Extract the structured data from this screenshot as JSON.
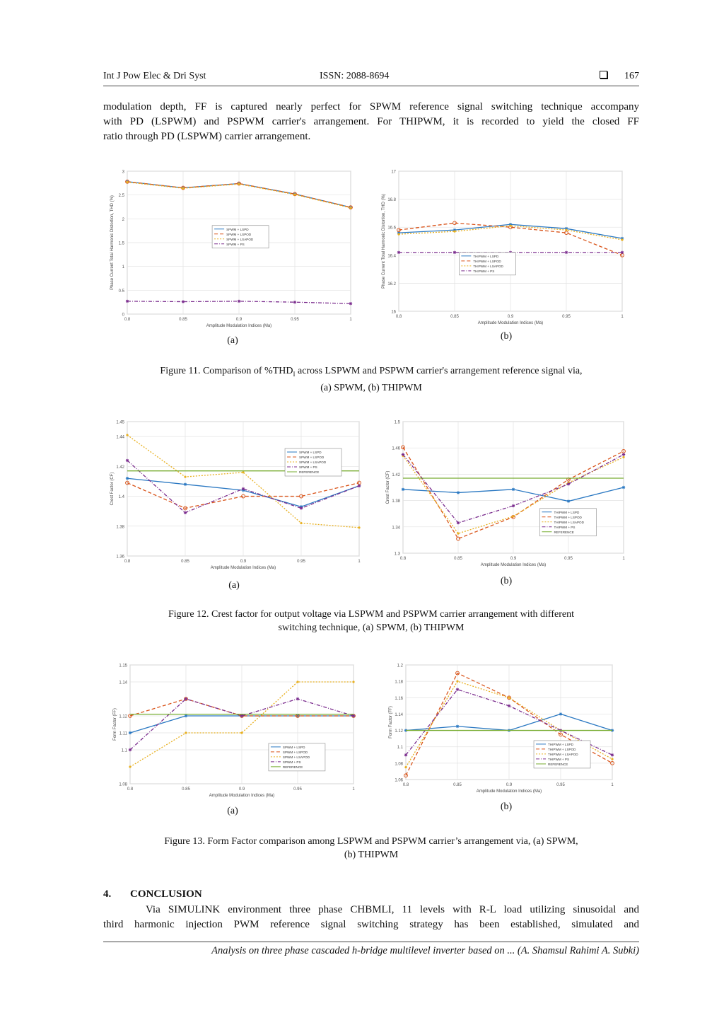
{
  "header": {
    "journal": "Int J Pow Elec & Dri Syst",
    "issn": "ISSN: 2088-8694",
    "page": "167"
  },
  "intro_lines": [
    "modulation depth, FF is captured nearly perfect for SPWM reference signal switching technique accompany",
    "with PD (LSPWM) and PSPWM carrier's arrangement. For THIPWM, it is recorded to yield the closed FF",
    "ratio through PD (LSPWM) carrier arrangement."
  ],
  "figures": [
    {
      "caption_line1_pre": "Figure 11. Comparison of %THD",
      "caption_line1_sub": "I",
      "caption_line1_post": " across LSPWM and PSPWM carrier's arrangement reference signal via,",
      "caption_line2": "(a) SPWM, (b) THIPWM",
      "label_a": "(a)",
      "label_b": "(b)"
    },
    {
      "caption_line1": "Figure 12. Crest factor for output voltage via LSPWM and PSPWM carrier arrangement with different",
      "caption_line2": "switching technique, (a) SPWM, (b) THIPWM",
      "label_a": "(a)",
      "label_b": "(b)"
    },
    {
      "caption_line1": "Figure 13. Form Factor comparison among LSPWM and PSPWM carrier’s arrangement via, (a) SPWM,",
      "caption_line2": "(b) THIPWM",
      "label_a": "(a)",
      "label_b": "(b)"
    }
  ],
  "section": {
    "number": "4.",
    "title": "CONCLUSION",
    "lines": [
      "Via SIMULINK environment three phase CHBMLI, 11 levels with R-L load utilizing sinusoidal and",
      "third harmonic injection PWM reference signal switching strategy has been established, simulated and"
    ]
  },
  "footer": "Analysis on three phase cascaded h-bridge multilevel inverter based on ... (A. Shamsul Rahimi A. Subki)",
  "colors": {
    "LSPD": "#2a78c2",
    "LSPOD": "#d9541a",
    "LSAPOD": "#e8b020",
    "PS": "#7b2d8e",
    "REFERENCE": "#77ac30"
  },
  "chart_data": [
    {
      "id": "fig11a",
      "type": "line",
      "xlabel": "Amplitude Modulation Indices (Ma)",
      "ylabel": "Phase Current Total Harmonic Distortion, THD (%)",
      "x": [
        0.8,
        0.85,
        0.9,
        0.95,
        1
      ],
      "xticks": [
        "0.8",
        "0.85",
        "0.9",
        "0.95",
        "1"
      ],
      "ylim": [
        0,
        3
      ],
      "yticks": [
        "0",
        "0.5",
        "1",
        "1.5",
        "2",
        "2.5",
        "3"
      ],
      "ytickvals": [
        0,
        0.5,
        1,
        1.5,
        2,
        2.5,
        3
      ],
      "legend": "center",
      "series": [
        {
          "name": "SPWM + LSPD",
          "key": "LSPD",
          "values": [
            2.78,
            2.65,
            2.74,
            2.52,
            2.24
          ]
        },
        {
          "name": "SPWM + LSPOD",
          "key": "LSPOD",
          "values": [
            2.78,
            2.65,
            2.74,
            2.52,
            2.24
          ]
        },
        {
          "name": "SPWM + LSAPOD",
          "key": "LSAPOD",
          "values": [
            2.77,
            2.64,
            2.73,
            2.51,
            2.23
          ]
        },
        {
          "name": "SPWM + PS",
          "key": "PS",
          "values": [
            0.27,
            0.26,
            0.27,
            0.25,
            0.22
          ]
        }
      ]
    },
    {
      "id": "fig11b",
      "type": "line",
      "xlabel": "Amplitude Modulation Indices (Ma)",
      "ylabel": "Phase Current Total Harmonic Distortion, THD (%)",
      "x": [
        0.8,
        0.85,
        0.9,
        0.95,
        1
      ],
      "xticks": [
        "0.8",
        "0.85",
        "0.9",
        "0.95",
        "1"
      ],
      "ylim": [
        16,
        17
      ],
      "yticks": [
        "16",
        "16.2",
        "16.4",
        "16.6",
        "16.8",
        "17"
      ],
      "ytickvals": [
        16,
        16.2,
        16.4,
        16.6,
        16.8,
        17
      ],
      "legend": "lower-left",
      "series": [
        {
          "name": "THIPWM + LSPD",
          "key": "LSPD",
          "values": [
            16.56,
            16.58,
            16.62,
            16.59,
            16.52
          ]
        },
        {
          "name": "THIPWM + LSPOD",
          "key": "LSPOD",
          "values": [
            16.58,
            16.63,
            16.6,
            16.56,
            16.4
          ]
        },
        {
          "name": "THIPWM + LSAPOD",
          "key": "LSAPOD",
          "values": [
            16.55,
            16.57,
            16.61,
            16.58,
            16.51
          ]
        },
        {
          "name": "THIPWM + PS",
          "key": "PS",
          "values": [
            16.42,
            16.42,
            16.42,
            16.42,
            16.42
          ]
        }
      ]
    },
    {
      "id": "fig12a",
      "type": "line",
      "xlabel": "Amplitude Modulation Indices (Ma)",
      "ylabel": "Crest Factor (CF)",
      "x": [
        0.8,
        0.85,
        0.9,
        0.95,
        1
      ],
      "xticks": [
        "0.8",
        "0.85",
        "0.9",
        "0.95",
        "1"
      ],
      "ylim": [
        1.36,
        1.45
      ],
      "yticks": [
        "1.36",
        "1.38",
        "1.4",
        "1.42",
        "1.44",
        "1.45"
      ],
      "ytickvals": [
        1.36,
        1.38,
        1.4,
        1.42,
        1.44,
        1.45
      ],
      "legend": "upper-right",
      "series": [
        {
          "name": "SPWM + LSPD",
          "key": "LSPD",
          "values": [
            1.412,
            1.408,
            1.404,
            1.393,
            1.407
          ]
        },
        {
          "name": "SPWM + LSPOD",
          "key": "LSPOD",
          "values": [
            1.409,
            1.392,
            1.4,
            1.4,
            1.409
          ]
        },
        {
          "name": "SPWM + LSAPOD",
          "key": "LSAPOD",
          "values": [
            1.441,
            1.413,
            1.416,
            1.382,
            1.379
          ]
        },
        {
          "name": "SPWM + PS",
          "key": "PS",
          "values": [
            1.424,
            1.389,
            1.405,
            1.392,
            1.407
          ]
        },
        {
          "name": "REFERENCE",
          "key": "REFERENCE",
          "values": [
            1.417,
            1.417,
            1.417,
            1.417,
            1.417
          ]
        }
      ]
    },
    {
      "id": "fig12b",
      "type": "line",
      "xlabel": "Amplitude Modulation Indices (Ma)",
      "ylabel": "Crest Factor (CF)",
      "x": [
        0.8,
        0.85,
        0.9,
        0.95,
        1
      ],
      "xticks": [
        "0.8",
        "0.85",
        "0.9",
        "0.95",
        "1"
      ],
      "ylim": [
        1.3,
        1.5
      ],
      "yticks": [
        "1.3",
        "1.34",
        "1.38",
        "1.42",
        "1.46",
        "1.5"
      ],
      "ytickvals": [
        1.3,
        1.34,
        1.38,
        1.42,
        1.46,
        1.5
      ],
      "legend": "lower-right",
      "series": [
        {
          "name": "THIPWM + LSPD",
          "key": "LSPD",
          "values": [
            1.397,
            1.392,
            1.397,
            1.379,
            1.4
          ]
        },
        {
          "name": "THIPWM + LSPOD",
          "key": "LSPOD",
          "values": [
            1.461,
            1.322,
            1.355,
            1.412,
            1.455
          ]
        },
        {
          "name": "THIPWM + LSAPOD",
          "key": "LSAPOD",
          "values": [
            1.448,
            1.33,
            1.356,
            1.407,
            1.446
          ]
        },
        {
          "name": "THIPWM + PS",
          "key": "PS",
          "values": [
            1.45,
            1.346,
            1.372,
            1.405,
            1.45
          ]
        },
        {
          "name": "REFERENCE",
          "key": "REFERENCE",
          "values": [
            1.414,
            1.414,
            1.414,
            1.414,
            1.414
          ]
        }
      ]
    },
    {
      "id": "fig13a",
      "type": "line",
      "xlabel": "Amplitude Modulation Indices (Ma)",
      "ylabel": "Form Factor (FF)",
      "x": [
        0.8,
        0.85,
        0.9,
        0.95,
        1
      ],
      "xticks": [
        "0.8",
        "0.85",
        "0.9",
        "0.95",
        "1"
      ],
      "ylim": [
        1.08,
        1.15
      ],
      "yticks": [
        "1.08",
        "1.1",
        "1.11",
        "1.12",
        "1.14",
        "1.15"
      ],
      "ytickvals": [
        1.08,
        1.1,
        1.11,
        1.12,
        1.14,
        1.15
      ],
      "legend": "lower-right",
      "series": [
        {
          "name": "SPWM + LSPD",
          "key": "LSPD",
          "values": [
            1.11,
            1.12,
            1.12,
            1.12,
            1.12
          ]
        },
        {
          "name": "SPWM + LSPOD",
          "key": "LSPOD",
          "values": [
            1.12,
            1.13,
            1.12,
            1.12,
            1.12
          ]
        },
        {
          "name": "SPWM + LSAPOD",
          "key": "LSAPOD",
          "values": [
            1.09,
            1.11,
            1.11,
            1.14,
            1.14
          ]
        },
        {
          "name": "SPWM + PS",
          "key": "PS",
          "values": [
            1.1,
            1.13,
            1.12,
            1.13,
            1.12
          ]
        },
        {
          "name": "REFERENCE",
          "key": "REFERENCE",
          "values": [
            1.121,
            1.121,
            1.121,
            1.121,
            1.121
          ]
        }
      ]
    },
    {
      "id": "fig13b",
      "type": "line",
      "xlabel": "Amplitude Modulation Indices (Ma)",
      "ylabel": "Form Factor (FF)",
      "x": [
        0.8,
        0.85,
        0.9,
        0.95,
        1
      ],
      "xticks": [
        "0.8",
        "0.85",
        "0.9",
        "0.95",
        "1"
      ],
      "ylim": [
        1.06,
        1.2
      ],
      "yticks": [
        "1.06",
        "1.08",
        "1.1",
        "1.12",
        "1.14",
        "1.16",
        "1.18",
        "1.2"
      ],
      "ytickvals": [
        1.06,
        1.08,
        1.1,
        1.12,
        1.14,
        1.16,
        1.18,
        1.2
      ],
      "legend": "lower-right",
      "series": [
        {
          "name": "THIPWM + LSPD",
          "key": "LSPD",
          "values": [
            1.12,
            1.125,
            1.12,
            1.14,
            1.12
          ]
        },
        {
          "name": "THIPWM + LSPOD",
          "key": "LSPOD",
          "values": [
            1.065,
            1.19,
            1.16,
            1.115,
            1.08
          ]
        },
        {
          "name": "THIPWM + LSAPOD",
          "key": "LSAPOD",
          "values": [
            1.075,
            1.18,
            1.16,
            1.12,
            1.085
          ]
        },
        {
          "name": "THIPWM + PS",
          "key": "PS",
          "values": [
            1.09,
            1.17,
            1.15,
            1.12,
            1.09
          ]
        },
        {
          "name": "REFERENCE",
          "key": "REFERENCE",
          "values": [
            1.12,
            1.12,
            1.12,
            1.12,
            1.12
          ]
        }
      ]
    }
  ]
}
